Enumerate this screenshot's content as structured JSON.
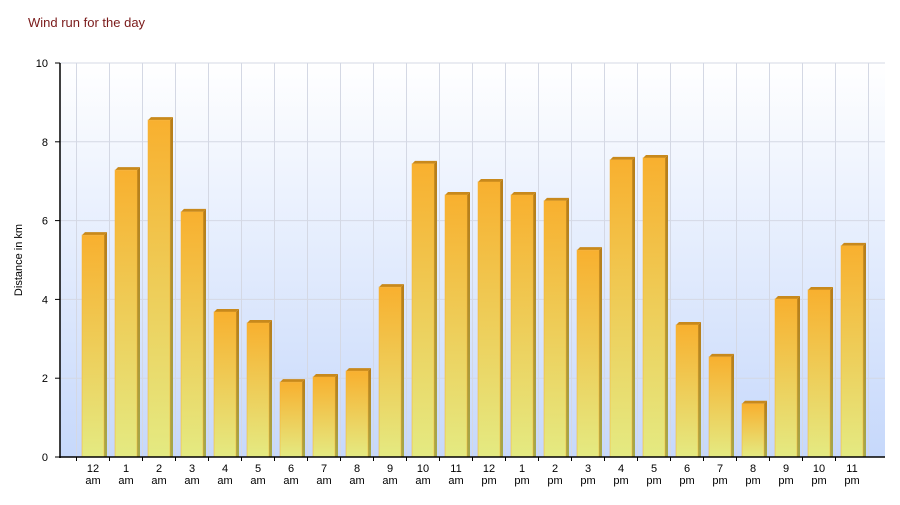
{
  "chart_data": {
    "type": "bar",
    "title": "Wind run for the day",
    "y_label": "Distance in km",
    "categories": [
      "12 am",
      "1 am",
      "2 am",
      "3 am",
      "4 am",
      "5 am",
      "6 am",
      "7 am",
      "8 am",
      "9 am",
      "10 am",
      "11 am",
      "12 pm",
      "1 pm",
      "2 pm",
      "3 pm",
      "4 pm",
      "5 pm",
      "6 pm",
      "7 pm",
      "8 pm",
      "9 pm",
      "10 pm",
      "11 pm"
    ],
    "values": [
      5.63,
      7.28,
      8.55,
      6.22,
      3.68,
      3.4,
      1.9,
      2.03,
      2.18,
      4.31,
      7.44,
      6.65,
      6.98,
      6.65,
      6.5,
      5.25,
      7.54,
      7.59,
      3.35,
      2.54,
      1.35,
      4.01,
      4.24,
      5.36
    ],
    "color": "#f8b02f",
    "ylim": [
      0,
      10
    ],
    "yticks": [
      0,
      2,
      4,
      6,
      8,
      10
    ],
    "grid": true
  }
}
